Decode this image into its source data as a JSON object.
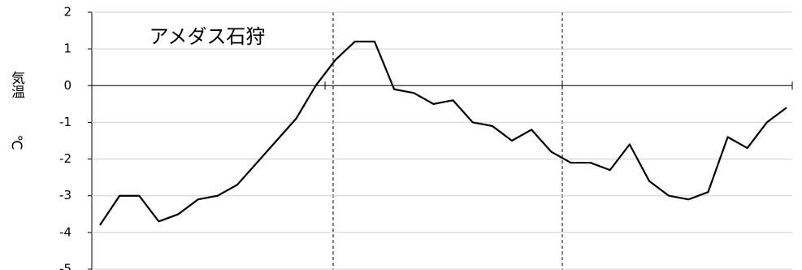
{
  "chart_data": {
    "type": "line",
    "title": "アメダス石狩",
    "ylabel": "気温",
    "yunit": "℃",
    "categories": [
      null,
      null,
      null,
      null,
      null,
      null,
      null,
      null,
      null,
      null,
      null,
      null,
      null,
      null,
      null,
      null,
      null,
      null,
      null,
      null,
      null,
      null,
      null,
      null,
      null,
      null,
      null,
      null,
      null,
      null,
      null,
      null,
      null,
      null,
      null,
      null
    ],
    "series": [
      {
        "color": "#000000",
        "values": [
          -3.8,
          -3.0,
          -3.0,
          -3.7,
          -3.5,
          -3.1,
          -3.0,
          -2.7,
          -2.1,
          -1.5,
          -0.9,
          0.0,
          0.7,
          1.2,
          1.2,
          -0.1,
          -0.2,
          -0.5,
          -0.4,
          -1.0,
          -1.1,
          -1.5,
          -1.2,
          -1.8,
          -2.1,
          -2.1,
          -2.3,
          -1.6,
          -2.6,
          -3.0,
          -3.1,
          -2.9,
          -1.4,
          -1.7,
          -1.0,
          -0.6
        ]
      }
    ],
    "ylim": [
      -5,
      2
    ],
    "yticks": [
      -5,
      -4,
      -3,
      -2,
      -1,
      0,
      1,
      2
    ],
    "grid": true
  }
}
